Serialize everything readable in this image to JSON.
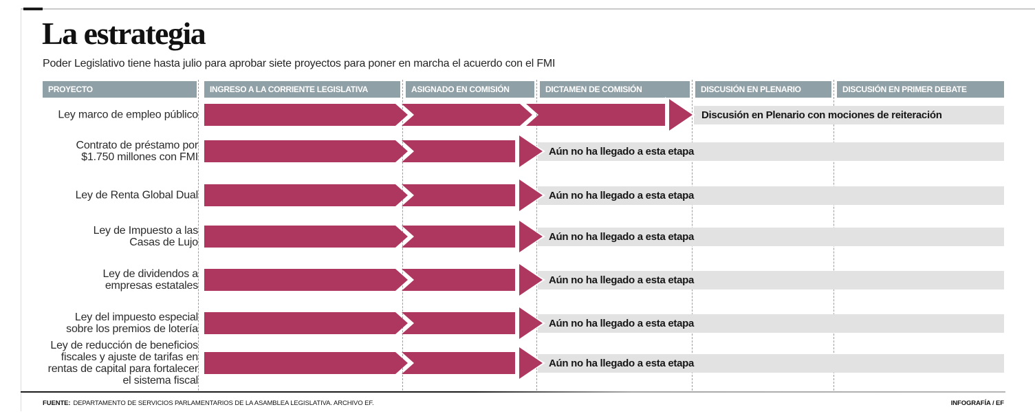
{
  "chart_data": {
    "type": "table",
    "title": "La estrategia",
    "subtitle": "Poder Legislativo tiene hasta julio para aprobar siete proyectos para poner en marcha el acuerdo con el FMI",
    "columns": [
      "PROYECTO",
      "INGRESO A LA CORRIENTE LEGISLATIVA",
      "ASIGNADO EN COMISIÓN",
      "DICTAMEN DE COMISIÓN",
      "DISCUSIÓN EN PLENARIO",
      "DISCUSIÓN EN PRIMER DEBATE"
    ],
    "stages_total": 5,
    "rows": [
      {
        "proyecto": "Ley marco de empleo público",
        "stages_completed": 3,
        "status": "Discusión en Plenario con mociones de reiteración"
      },
      {
        "proyecto": "Contrato de préstamo por\n$1.750 millones con FMI",
        "stages_completed": 2,
        "status": "Aún no ha llegado a esta etapa"
      },
      {
        "proyecto": "Ley de Renta Global Dual",
        "stages_completed": 2,
        "status": "Aún no ha llegado a esta etapa"
      },
      {
        "proyecto": "Ley de Impuesto a las\nCasas de Lujo",
        "stages_completed": 2,
        "status": "Aún no ha llegado a esta etapa"
      },
      {
        "proyecto": "Ley de dividendos a\nempresas estatales",
        "stages_completed": 2,
        "status": "Aún no ha llegado a esta etapa"
      },
      {
        "proyecto": "Ley del impuesto especial\nsobre los premios de lotería",
        "stages_completed": 2,
        "status": "Aún no ha llegado a esta etapa"
      },
      {
        "proyecto": "Ley de reducción de beneficios\nfiscales y ajuste de tarifas en\nrentas de capital para fortalecer\nel sistema fiscal",
        "stages_completed": 2,
        "status": "Aún no ha llegado a esta etapa"
      }
    ],
    "colors": {
      "arrow": "#ae3760",
      "header_bg": "#90a0a7",
      "status_bar_bg": "#e2e2e2",
      "text": "#1c1c1c"
    },
    "layout": {
      "grid": "dashed column dividers",
      "legend": "none"
    }
  },
  "footer": {
    "source_label": "FUENTE:",
    "source_text": "DEPARTAMENTO DE SERVICIOS PARLAMENTARIOS DE LA ASAMBLEA LEGISLATIVA. ARCHIVO EF.",
    "credit": "INFOGRAFÍA / EF"
  }
}
